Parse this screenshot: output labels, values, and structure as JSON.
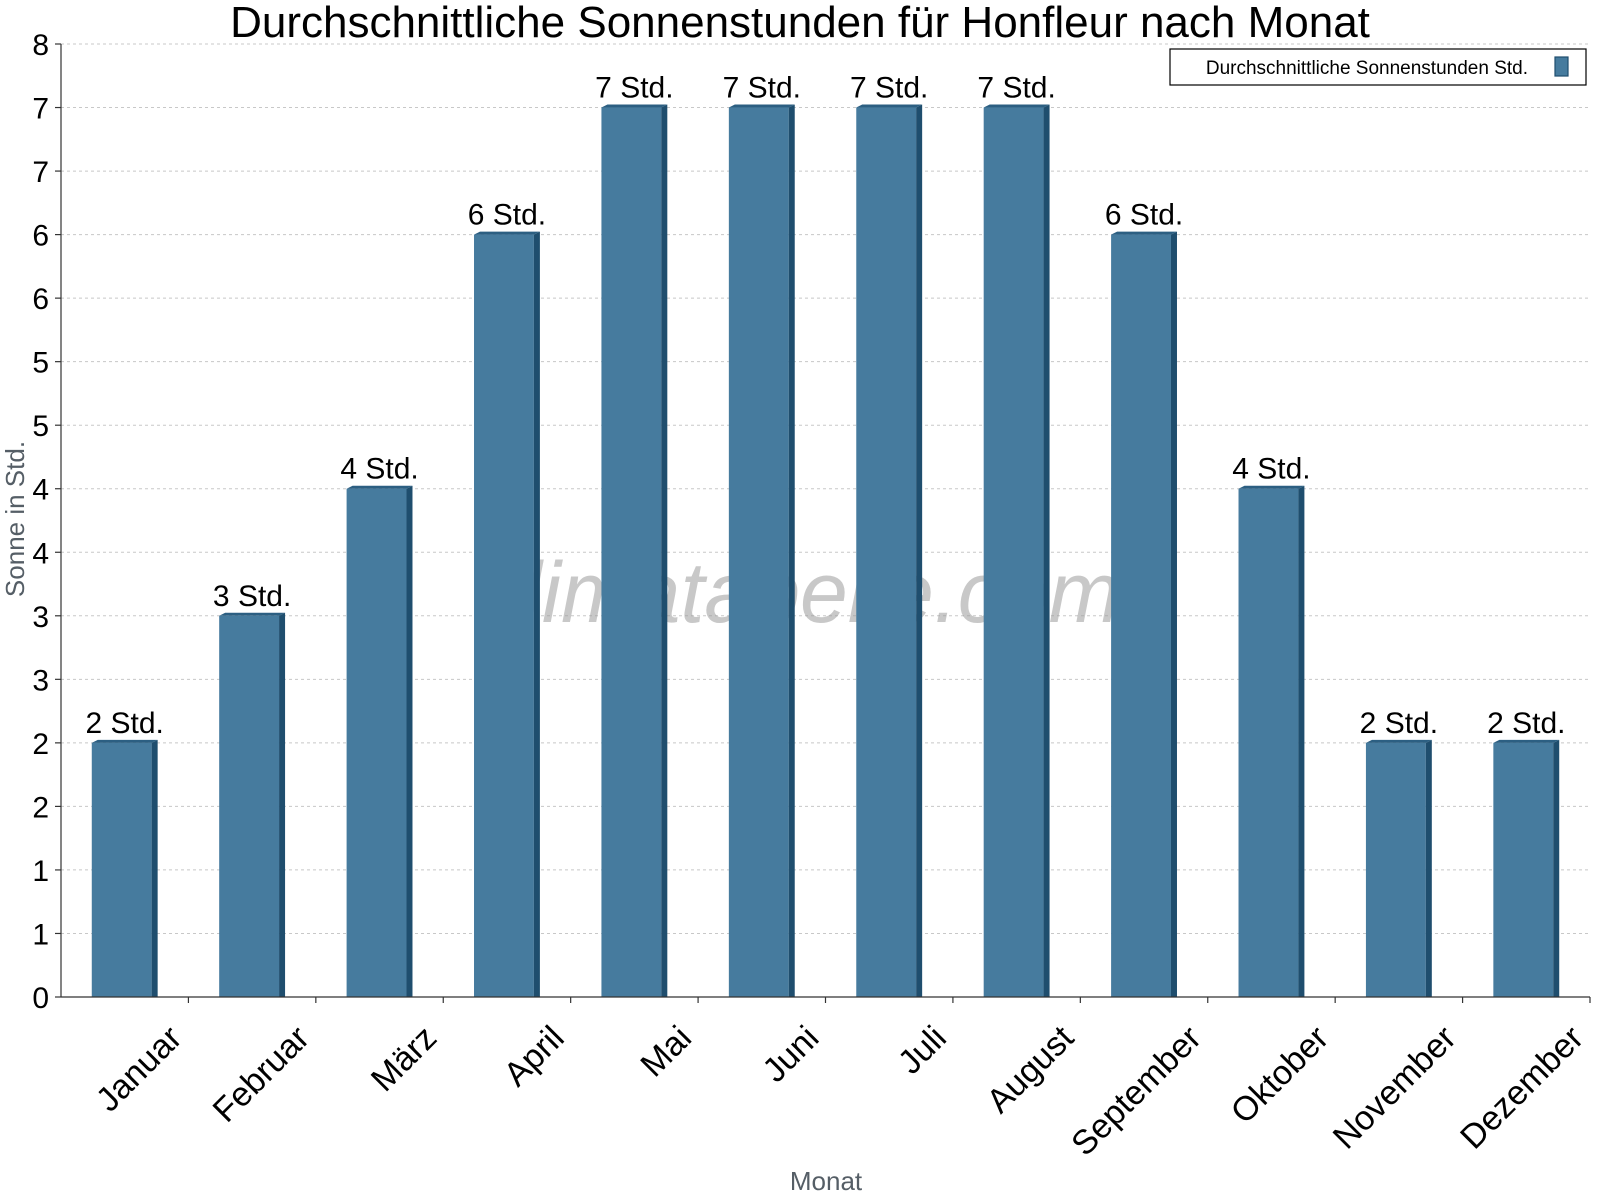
{
  "chart_data": {
    "type": "bar",
    "title": "Durchschnittliche Sonnenstunden für Honfleur nach Monat",
    "xlabel": "Monat",
    "ylabel": "Sonne in Std.",
    "categories": [
      "Januar",
      "Februar",
      "März",
      "April",
      "Mai",
      "Juni",
      "Juli",
      "August",
      "September",
      "Oktober",
      "November",
      "Dezember"
    ],
    "series": [
      {
        "name": "Durchschnittliche Sonnenstunden Std.",
        "values": [
          2,
          3,
          4,
          6,
          7,
          7,
          7,
          7,
          6,
          4,
          2,
          2
        ],
        "labels": [
          "2 Std.",
          "3 Std.",
          "4 Std.",
          "6 Std.",
          "7 Std.",
          "7 Std.",
          "7 Std.",
          "7 Std.",
          "6 Std.",
          "4 Std.",
          "2 Std.",
          "2 Std."
        ]
      }
    ],
    "ylim": [
      0,
      7.5
    ],
    "yticks": [
      0,
      0.5,
      1,
      1.5,
      2,
      2.5,
      3,
      3.5,
      4,
      4.5,
      5,
      5.5,
      6,
      6.5,
      7,
      7.5
    ],
    "ytick_labels": [
      "0",
      "1",
      "1",
      "2",
      "2",
      "3",
      "3",
      "4",
      "4",
      "5",
      "5",
      "6",
      "6",
      "7",
      "7",
      "8"
    ],
    "grid": true,
    "legend_position": "top-right",
    "colors": {
      "bar_front": "#467b9e",
      "bar_side": "#1f4e6e",
      "bar_top": "#2c5f82"
    },
    "watermark": "klimatabelle.com"
  }
}
